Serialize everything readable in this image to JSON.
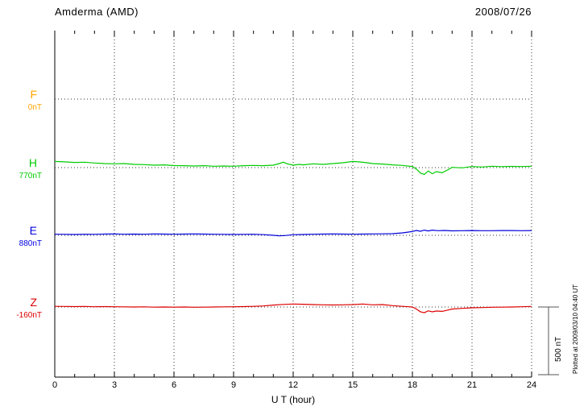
{
  "header": {
    "station": "Amderma (AMD)",
    "date": "2008/07/26"
  },
  "footer": {
    "plotted_note": "Plotted at 2009/03/10 04:40 UT"
  },
  "axis": {
    "xlabel": "U T (hour)",
    "x_ticks": [
      "0",
      "3",
      "6",
      "9",
      "12",
      "15",
      "18",
      "21",
      "24"
    ]
  },
  "scale_bar": {
    "label": "500 nT",
    "value_nT": 500
  },
  "colors": {
    "F": "#FFA500",
    "H": "#00CC00",
    "E": "#0000DD",
    "Z": "#DD0000",
    "grid": "#333333",
    "axis": "#000000"
  },
  "chart_data": {
    "type": "line",
    "title": "Amderma (AMD)",
    "subtitle": "2008/07/26",
    "xlabel": "U T (hour)",
    "x_range": [
      0,
      24
    ],
    "x_tick_step": 3,
    "scale_nT_per_division": 500,
    "grid": "dotted-vertical-every-3h",
    "legend_position": "left-channel-labels",
    "series": [
      {
        "channel": "F",
        "baseline_label": "0nT",
        "baseline_nT": 0,
        "color": "#FFA500",
        "points": []
      },
      {
        "channel": "H",
        "baseline_label": "770nT",
        "baseline_nT": 770,
        "color": "#00CC00",
        "points": [
          [
            0,
            45
          ],
          [
            0.5,
            42
          ],
          [
            1,
            38
          ],
          [
            1.5,
            40
          ],
          [
            2,
            34
          ],
          [
            2.5,
            30
          ],
          [
            3,
            28
          ],
          [
            3.5,
            30
          ],
          [
            4,
            24
          ],
          [
            4.5,
            22
          ],
          [
            5,
            18
          ],
          [
            5.5,
            20
          ],
          [
            6,
            15
          ],
          [
            6.5,
            14
          ],
          [
            7,
            12
          ],
          [
            7.5,
            14
          ],
          [
            8,
            10
          ],
          [
            8.5,
            12
          ],
          [
            9,
            10
          ],
          [
            9.5,
            14
          ],
          [
            10,
            16
          ],
          [
            10.5,
            14
          ],
          [
            11,
            18
          ],
          [
            11.3,
            30
          ],
          [
            11.5,
            40
          ],
          [
            11.7,
            28
          ],
          [
            12,
            18
          ],
          [
            12.3,
            24
          ],
          [
            12.5,
            20
          ],
          [
            13,
            28
          ],
          [
            13.5,
            24
          ],
          [
            14,
            30
          ],
          [
            14.5,
            36
          ],
          [
            15,
            45
          ],
          [
            15.3,
            42
          ],
          [
            15.6,
            38
          ],
          [
            16,
            30
          ],
          [
            16.5,
            26
          ],
          [
            17,
            20
          ],
          [
            17.5,
            16
          ],
          [
            18,
            8
          ],
          [
            18.2,
            -10
          ],
          [
            18.4,
            -40
          ],
          [
            18.6,
            -50
          ],
          [
            18.8,
            -25
          ],
          [
            19,
            -45
          ],
          [
            19.2,
            -30
          ],
          [
            19.5,
            -38
          ],
          [
            19.8,
            -15
          ],
          [
            20,
            2
          ],
          [
            20.5,
            -2
          ],
          [
            21,
            8
          ],
          [
            21.5,
            4
          ],
          [
            22,
            10
          ],
          [
            22.5,
            7
          ],
          [
            23,
            9
          ],
          [
            23.5,
            8
          ],
          [
            24,
            10
          ]
        ]
      },
      {
        "channel": "E",
        "baseline_label": "880nT",
        "baseline_nT": 880,
        "color": "#0000DD",
        "points": [
          [
            0,
            8
          ],
          [
            0.5,
            7
          ],
          [
            1,
            6
          ],
          [
            1.5,
            8
          ],
          [
            2,
            7
          ],
          [
            2.5,
            9
          ],
          [
            3,
            10
          ],
          [
            3.5,
            8
          ],
          [
            4,
            9
          ],
          [
            4.5,
            8
          ],
          [
            5,
            10
          ],
          [
            5.5,
            9
          ],
          [
            6,
            8
          ],
          [
            6.5,
            9
          ],
          [
            7,
            10
          ],
          [
            7.5,
            9
          ],
          [
            8,
            8
          ],
          [
            8.5,
            7
          ],
          [
            9,
            6
          ],
          [
            9.5,
            7
          ],
          [
            10,
            8
          ],
          [
            10.5,
            5
          ],
          [
            11,
            0
          ],
          [
            11.3,
            -4
          ],
          [
            11.6,
            -2
          ],
          [
            12,
            4
          ],
          [
            12.5,
            6
          ],
          [
            13,
            8
          ],
          [
            13.5,
            9
          ],
          [
            14,
            10
          ],
          [
            14.5,
            9
          ],
          [
            15,
            8
          ],
          [
            15.5,
            9
          ],
          [
            16,
            10
          ],
          [
            16.5,
            11
          ],
          [
            17,
            12
          ],
          [
            17.5,
            18
          ],
          [
            18,
            28
          ],
          [
            18.2,
            36
          ],
          [
            18.4,
            30
          ],
          [
            18.6,
            38
          ],
          [
            18.8,
            32
          ],
          [
            19,
            38
          ],
          [
            19.3,
            34
          ],
          [
            19.6,
            36
          ],
          [
            20,
            33
          ],
          [
            20.5,
            34
          ],
          [
            21,
            35
          ],
          [
            21.5,
            34
          ],
          [
            22,
            34
          ],
          [
            22.5,
            35
          ],
          [
            23,
            35
          ],
          [
            23.5,
            34
          ],
          [
            24,
            35
          ]
        ]
      },
      {
        "channel": "Z",
        "baseline_label": "-160nT",
        "baseline_nT": -160,
        "color": "#DD0000",
        "points": [
          [
            0,
            5
          ],
          [
            0.5,
            4
          ],
          [
            1,
            3
          ],
          [
            1.5,
            4
          ],
          [
            2,
            2
          ],
          [
            2.5,
            3
          ],
          [
            3,
            2
          ],
          [
            3.5,
            1
          ],
          [
            4,
            0
          ],
          [
            4.5,
            1
          ],
          [
            5,
            -1
          ],
          [
            5.5,
            0
          ],
          [
            6,
            -1
          ],
          [
            6.5,
            0
          ],
          [
            7,
            -2
          ],
          [
            7.5,
            -1
          ],
          [
            8,
            0
          ],
          [
            8.5,
            1
          ],
          [
            9,
            2
          ],
          [
            9.5,
            3
          ],
          [
            10,
            5
          ],
          [
            10.5,
            8
          ],
          [
            11,
            14
          ],
          [
            11.5,
            19
          ],
          [
            12,
            22
          ],
          [
            12.5,
            20
          ],
          [
            13,
            18
          ],
          [
            13.5,
            16
          ],
          [
            14,
            15
          ],
          [
            14.5,
            16
          ],
          [
            15,
            18
          ],
          [
            15.5,
            22
          ],
          [
            16,
            16
          ],
          [
            16.5,
            18
          ],
          [
            17,
            10
          ],
          [
            17.5,
            5
          ],
          [
            18,
            0
          ],
          [
            18.2,
            -15
          ],
          [
            18.4,
            -35
          ],
          [
            18.6,
            -42
          ],
          [
            18.8,
            -28
          ],
          [
            19,
            -36
          ],
          [
            19.2,
            -30
          ],
          [
            19.5,
            -32
          ],
          [
            19.8,
            -22
          ],
          [
            20,
            -15
          ],
          [
            20.5,
            -10
          ],
          [
            21,
            -6
          ],
          [
            21.5,
            -4
          ],
          [
            22,
            -2
          ],
          [
            22.5,
            -1
          ],
          [
            23,
            0
          ],
          [
            23.5,
            2
          ],
          [
            24,
            4
          ]
        ]
      }
    ]
  }
}
